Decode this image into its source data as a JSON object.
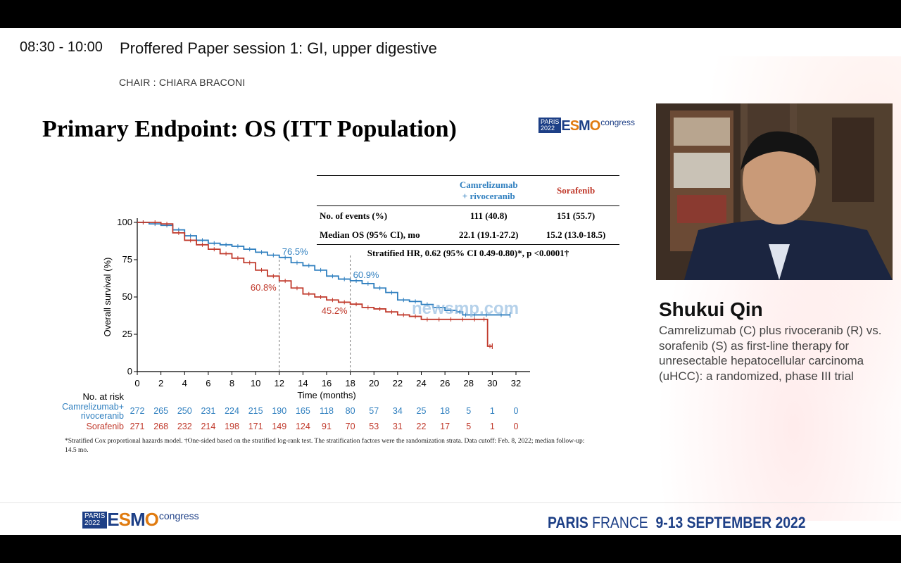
{
  "header": {
    "time": "08:30 - 10:00",
    "session_title": "Proffered Paper session 1: GI, upper digestive",
    "chair": "CHAIR : CHIARA BRACONI"
  },
  "slide": {
    "title": "Primary Endpoint: OS (ITT Population)",
    "logo": {
      "paris": "PARIS",
      "year": "2022",
      "word": [
        "E",
        "S",
        "M",
        "O"
      ],
      "congress": "congress"
    },
    "table": {
      "col_cam_1": "Camrelizumab",
      "col_cam_2": "+ rivoceranib",
      "col_sor": "Sorafenib",
      "rows": [
        {
          "label": "No. of events (%)",
          "cam": "111 (40.8)",
          "sor": "151 (55.7)"
        },
        {
          "label": "Median OS (95% CI), mo",
          "cam": "22.1 (19.1-27.2)",
          "sor": "15.2 (13.0-18.5)"
        }
      ],
      "hr_text": "Stratified HR, 0.62 (95% CI 0.49-0.80)*, p <0.0001†"
    },
    "footnote": "*Stratified Cox proportional hazards model. †One-sided based on the stratified log-rank test. The stratification factors were the randomization strata. Data cutoff: Feb. 8, 2022; median follow-up: 14.5 mo.",
    "watermark": "newsmp.com"
  },
  "chart_data": {
    "type": "line",
    "xlabel": "Time (months)",
    "ylabel": "Overall survival (%)",
    "xlim": [
      0,
      32
    ],
    "ylim": [
      0,
      100
    ],
    "xticks": [
      0,
      2,
      4,
      6,
      8,
      10,
      12,
      14,
      16,
      18,
      20,
      22,
      24,
      26,
      28,
      30,
      32
    ],
    "yticks": [
      0,
      25,
      50,
      75,
      100
    ],
    "reference_lines_x": [
      12,
      18
    ],
    "series": [
      {
        "name": "Camrelizumab+ rivoceranib",
        "color": "#2f7fbf",
        "x": [
          0,
          1,
          2,
          3,
          4,
          5,
          6,
          7,
          8,
          9,
          10,
          11,
          12,
          13,
          14,
          15,
          16,
          17,
          18,
          19,
          20,
          21,
          22,
          23,
          24,
          25,
          26,
          27,
          27.5,
          28,
          29,
          30,
          31.5
        ],
        "y": [
          100,
          99,
          98,
          95,
          91,
          88,
          86,
          85,
          84,
          82,
          80,
          78,
          76.5,
          73,
          71,
          68,
          64,
          62,
          60.9,
          59,
          56,
          53,
          48,
          47,
          45,
          43,
          41,
          40,
          38,
          38,
          38,
          38,
          38
        ]
      },
      {
        "name": "Sorafenib",
        "color": "#c0392b",
        "x": [
          0,
          1,
          2,
          3,
          4,
          5,
          6,
          7,
          8,
          9,
          10,
          11,
          12,
          13,
          14,
          15,
          16,
          17,
          18,
          19,
          20,
          21,
          22,
          23,
          24,
          25,
          26,
          27,
          28,
          29,
          29.6,
          30
        ],
        "y": [
          100,
          100,
          99,
          93,
          88,
          85,
          82,
          79,
          76,
          73,
          68,
          64,
          60.8,
          56,
          52,
          50,
          48,
          46.5,
          45.2,
          43,
          42,
          40,
          38,
          37,
          35,
          35,
          35,
          35,
          35,
          35,
          17,
          17
        ]
      }
    ],
    "annotations": [
      {
        "x": 12,
        "y": 76.5,
        "text": "76.5%",
        "series": 0
      },
      {
        "x": 18,
        "y": 60.9,
        "text": "60.9%",
        "series": 0
      },
      {
        "x": 12,
        "y": 60.8,
        "text": "60.8%",
        "series": 1
      },
      {
        "x": 18,
        "y": 45.2,
        "text": "45.2%",
        "series": 1
      }
    ],
    "at_risk": {
      "title": "No. at risk",
      "rows": [
        {
          "label": [
            "Camrelizumab+",
            "rivoceranib"
          ],
          "color": "#2f7fbf",
          "values": [
            272,
            265,
            250,
            231,
            224,
            215,
            190,
            165,
            118,
            80,
            57,
            34,
            25,
            18,
            5,
            1,
            0
          ]
        },
        {
          "label": [
            "Sorafenib"
          ],
          "color": "#c0392b",
          "values": [
            271,
            268,
            232,
            214,
            198,
            171,
            149,
            124,
            91,
            70,
            53,
            31,
            22,
            17,
            5,
            1,
            0
          ]
        }
      ]
    }
  },
  "speaker": {
    "name": "Shukui Qin",
    "talk": "Camrelizumab (C) plus rivoceranib (R) vs. sorafenib (S) as first-line therapy for unresectable hepatocellular carcinoma (uHCC): a randomized, phase III trial"
  },
  "footer": {
    "logo": {
      "paris": "PARIS",
      "year": "2022",
      "word": [
        "E",
        "S",
        "M",
        "O"
      ],
      "congress": "congress"
    },
    "city": "PARIS",
    "country": "FRANCE",
    "dates": "9-13 SEPTEMBER 2022"
  }
}
